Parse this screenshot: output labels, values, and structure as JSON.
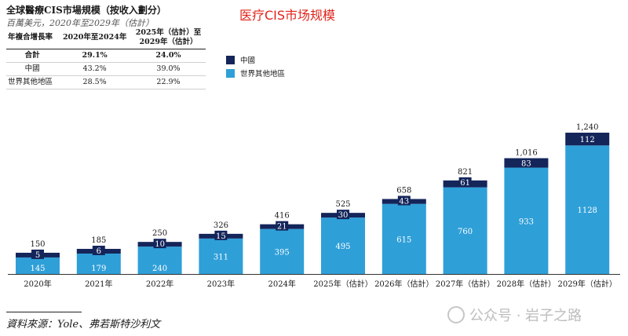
{
  "header": {
    "title": "全球醫療CIS市場規模（按收入劃分）",
    "subtitle": "百萬美元，2020年至2029年（估計）",
    "overlay_title": "医疗CIS市场规模"
  },
  "cagr_table": {
    "col_header_label": "年複合增長率",
    "col_header_period1": "2020年至2024年",
    "col_header_period2_line1": "2025年（估計）至",
    "col_header_period2_line2": "2029年（估計）",
    "rows": [
      {
        "label": "合計",
        "p1": "29.1%",
        "p2": "24.0%"
      },
      {
        "label": "中國",
        "p1": "43.2%",
        "p2": "39.0%"
      },
      {
        "label": "世界其他地區",
        "p1": "28.5%",
        "p2": "22.9%"
      }
    ]
  },
  "legend": {
    "china": "中國",
    "rest": "世界其他地區"
  },
  "colors": {
    "china": "#14255a",
    "rest": "#2f9fd8",
    "title_red": "#e0241b"
  },
  "chart_data": {
    "type": "bar",
    "stacked": true,
    "categories": [
      "2020年",
      "2021年",
      "2022年",
      "2023年",
      "2024年",
      "2025年（估計）",
      "2026年（估計）",
      "2027年（估計）",
      "2028年（估計）",
      "2029年（估計）"
    ],
    "series": [
      {
        "name": "世界其他地區",
        "values": [
          145,
          179,
          240,
          311,
          395,
          495,
          615,
          760,
          933,
          1128
        ]
      },
      {
        "name": "中國",
        "values": [
          5,
          6,
          10,
          15,
          21,
          30,
          43,
          61,
          83,
          112
        ]
      }
    ],
    "totals": [
      "150",
      "185",
      "250",
      "326",
      "416",
      "525",
      "658",
      "821",
      "1,016",
      "1,240"
    ],
    "ylim": [
      0,
      1240
    ],
    "title": "全球醫療CIS市場規模（按收入劃分）",
    "unit": "百萬美元"
  },
  "footer": {
    "source": "資料來源：Yole、弗若斯特沙利文",
    "watermark": "公众号 · 岩子之路"
  }
}
